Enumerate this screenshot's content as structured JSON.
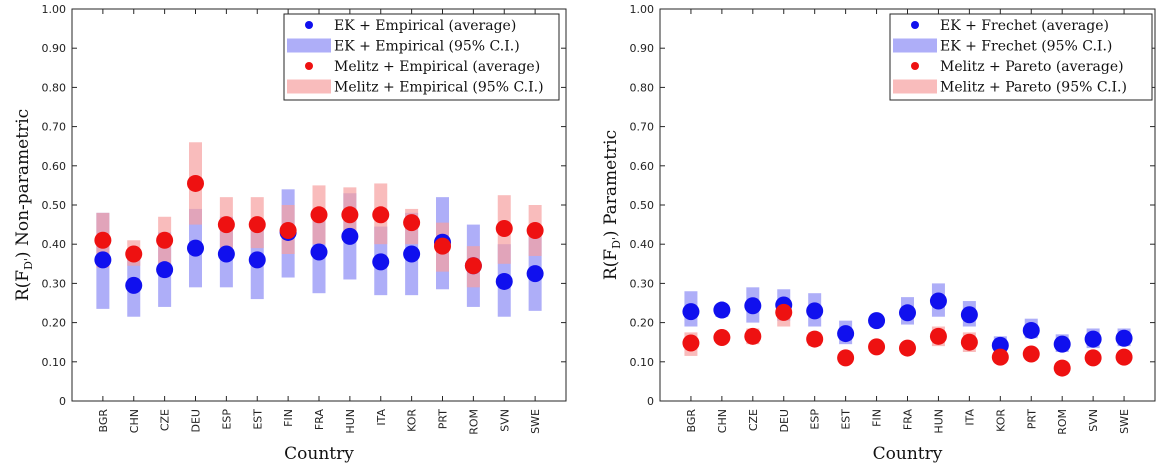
{
  "chart_data": [
    {
      "type": "scatter",
      "title": "",
      "xlabel": "Country",
      "ylabel_main": "R(F",
      "ylabel_sub": "D'",
      "ylabel_suffix": ") Non-parametric",
      "ylim": [
        0,
        1
      ],
      "yticks": [
        "0",
        "0.10",
        "0.20",
        "0.30",
        "0.40",
        "0.50",
        "0.60",
        "0.70",
        "0.80",
        "0.90",
        "1.00"
      ],
      "grid": false,
      "legend_position": "top-right",
      "categories": [
        "BGR",
        "CHN",
        "CZE",
        "DEU",
        "ESP",
        "EST",
        "FIN",
        "FRA",
        "HUN",
        "ITA",
        "KOR",
        "PRT",
        "ROM",
        "SVN",
        "SWE"
      ],
      "series": [
        {
          "name": "EK + Empirical (average)",
          "ci_name": "EK + Empirical (95% C.I.)",
          "color": "#1010ee",
          "ci_color": "#8c8cf5",
          "values": [
            0.36,
            0.295,
            0.335,
            0.39,
            0.375,
            0.36,
            0.43,
            0.38,
            0.42,
            0.355,
            0.375,
            0.405,
            0.345,
            0.305,
            0.325
          ],
          "ci_low": [
            0.235,
            0.215,
            0.24,
            0.29,
            0.29,
            0.26,
            0.315,
            0.275,
            0.31,
            0.27,
            0.27,
            0.285,
            0.24,
            0.215,
            0.23
          ],
          "ci_high": [
            0.48,
            0.385,
            0.43,
            0.49,
            0.47,
            0.46,
            0.54,
            0.48,
            0.53,
            0.445,
            0.48,
            0.52,
            0.45,
            0.4,
            0.42
          ]
        },
        {
          "name": "Melitz + Empirical (average)",
          "ci_name": "Melitz + Empirical (95% C.I.)",
          "color": "#ee1111",
          "ci_color": "#f6a0a0",
          "values": [
            0.41,
            0.375,
            0.41,
            0.555,
            0.45,
            0.45,
            0.435,
            0.475,
            0.475,
            0.475,
            0.455,
            0.395,
            0.345,
            0.44,
            0.435
          ],
          "ci_low": [
            0.34,
            0.345,
            0.345,
            0.45,
            0.38,
            0.39,
            0.375,
            0.4,
            0.405,
            0.4,
            0.4,
            0.33,
            0.29,
            0.35,
            0.37
          ],
          "ci_high": [
            0.48,
            0.41,
            0.47,
            0.66,
            0.52,
            0.52,
            0.5,
            0.55,
            0.545,
            0.555,
            0.49,
            0.455,
            0.395,
            0.525,
            0.5
          ]
        }
      ]
    },
    {
      "type": "scatter",
      "title": "",
      "xlabel": "Country",
      "ylabel_main": "R(F",
      "ylabel_sub": "D'",
      "ylabel_suffix": ") Parametric",
      "ylim": [
        0,
        1
      ],
      "yticks": [
        "0",
        "0.10",
        "0.20",
        "0.30",
        "0.40",
        "0.50",
        "0.60",
        "0.70",
        "0.80",
        "0.90",
        "1.00"
      ],
      "grid": false,
      "legend_position": "top-right",
      "categories": [
        "BGR",
        "CHN",
        "CZE",
        "DEU",
        "ESP",
        "EST",
        "FIN",
        "FRA",
        "HUN",
        "ITA",
        "KOR",
        "PRT",
        "ROM",
        "SVN",
        "SWE"
      ],
      "series": [
        {
          "name": "EK + Frechet (average)",
          "ci_name": "EK + Frechet (95% C.I.)",
          "color": "#1010ee",
          "ci_color": "#8c8cf5",
          "values": [
            0.228,
            0.232,
            0.243,
            0.245,
            0.23,
            0.172,
            0.205,
            0.225,
            0.255,
            0.22,
            0.142,
            0.18,
            0.145,
            0.158,
            0.16
          ],
          "ci_low": [
            0.19,
            0.215,
            0.2,
            0.205,
            0.19,
            0.145,
            0.19,
            0.195,
            0.215,
            0.19,
            0.125,
            0.16,
            0.125,
            0.135,
            0.14
          ],
          "ci_high": [
            0.28,
            0.245,
            0.29,
            0.285,
            0.275,
            0.205,
            0.22,
            0.265,
            0.3,
            0.255,
            0.165,
            0.21,
            0.17,
            0.185,
            0.185
          ]
        },
        {
          "name": "Melitz + Pareto (average)",
          "ci_name": "Melitz + Pareto (95% C.I.)",
          "color": "#ee1111",
          "ci_color": "#f6a0a0",
          "values": [
            0.148,
            0.162,
            0.165,
            0.226,
            0.158,
            0.11,
            0.138,
            0.135,
            0.165,
            0.15,
            0.112,
            0.12,
            0.084,
            0.11,
            0.112
          ],
          "ci_low": [
            0.115,
            0.15,
            0.145,
            0.19,
            0.14,
            0.095,
            0.125,
            0.12,
            0.14,
            0.125,
            0.1,
            0.105,
            0.07,
            0.095,
            0.1
          ],
          "ci_high": [
            0.175,
            0.175,
            0.185,
            0.26,
            0.175,
            0.125,
            0.15,
            0.15,
            0.19,
            0.175,
            0.125,
            0.135,
            0.098,
            0.125,
            0.125
          ]
        }
      ]
    }
  ]
}
